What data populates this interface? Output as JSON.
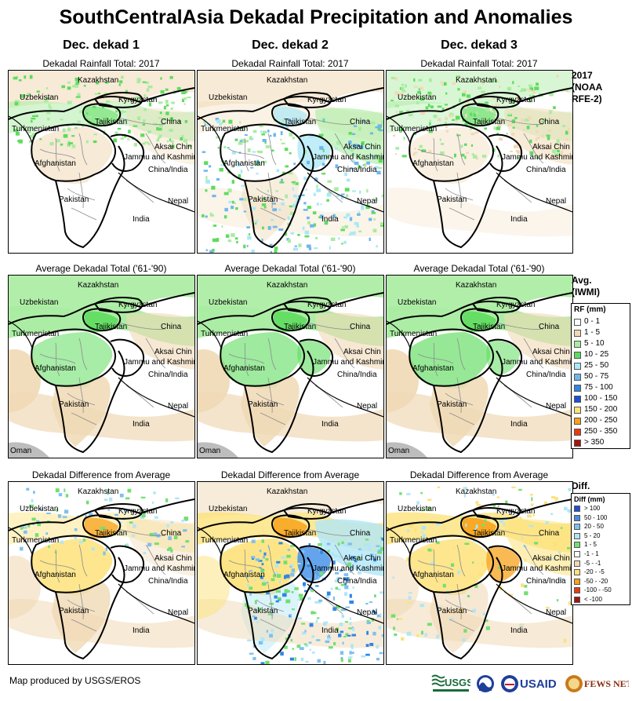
{
  "title": "SouthCentralAsia Dekadal Precipitation and Anomalies",
  "columns": [
    "Dec. dekad 1",
    "Dec. dekad 2",
    "Dec. dekad 3"
  ],
  "panel_titles": {
    "rainfall": "Dekadal Rainfall Total: 2017",
    "average": "Average Dekadal Total ('61-'90)",
    "difference": "Dekadal Difference from Average"
  },
  "map_labels": [
    "Kazakhstan",
    "Uzbekistan",
    "Kyrgyzstan",
    "Tajikistan",
    "Turkmenistan",
    "China",
    "Aksai Chin",
    "Jammu and Kashmir",
    "China/India",
    "Afghanistan",
    "Pakistan",
    "Nepal",
    "India"
  ],
  "oman_label": "Oman",
  "row_labels": {
    "rainfall": [
      "2017",
      "(NOAA",
      "RFE-2)"
    ],
    "average": [
      "Avg.",
      "(IWMI)"
    ],
    "difference": [
      "Diff."
    ]
  },
  "rf_legend": {
    "title": "RF (mm)",
    "items": [
      {
        "label": "0 - 1",
        "color": "#ffffff"
      },
      {
        "label": "1 - 5",
        "color": "#f0d9b5"
      },
      {
        "label": "5 - 10",
        "color": "#a8eca0"
      },
      {
        "label": "10 - 25",
        "color": "#5edc5e"
      },
      {
        "label": "25 - 50",
        "color": "#a9e8f6"
      },
      {
        "label": "50 - 75",
        "color": "#6fb6ee"
      },
      {
        "label": "75 - 100",
        "color": "#2f86e6"
      },
      {
        "label": "100 - 150",
        "color": "#1c4fd6"
      },
      {
        "label": "150 - 200",
        "color": "#fde27a"
      },
      {
        "label": "200 - 250",
        "color": "#f7a21a"
      },
      {
        "label": "250 - 350",
        "color": "#ea3a0f"
      },
      {
        "label": "> 350",
        "color": "#a0150f"
      }
    ]
  },
  "diff_legend": {
    "title": "Diff (mm)",
    "items": [
      {
        "label": "> 100",
        "color": "#1f4fd8"
      },
      {
        "label": "50 - 100",
        "color": "#4a8be6"
      },
      {
        "label": "20 - 50",
        "color": "#7fc0f0"
      },
      {
        "label": "5 - 20",
        "color": "#b0e6f7"
      },
      {
        "label": "1 - 5",
        "color": "#72df72"
      },
      {
        "label": "-1 - 1",
        "color": "#ffffff"
      },
      {
        "label": "-5 - -1",
        "color": "#f0d9b5"
      },
      {
        "label": "-20 - -5",
        "color": "#fde27a"
      },
      {
        "label": "-50 - -20",
        "color": "#f7a21a"
      },
      {
        "label": "-100 - -50",
        "color": "#ea3a0f"
      },
      {
        "label": "< -100",
        "color": "#a0150f"
      }
    ]
  },
  "credit": "Map produced by USGS/EROS",
  "logos": {
    "usgs": "USGS",
    "usaid": "USAID",
    "fews": "FEWS NET"
  }
}
